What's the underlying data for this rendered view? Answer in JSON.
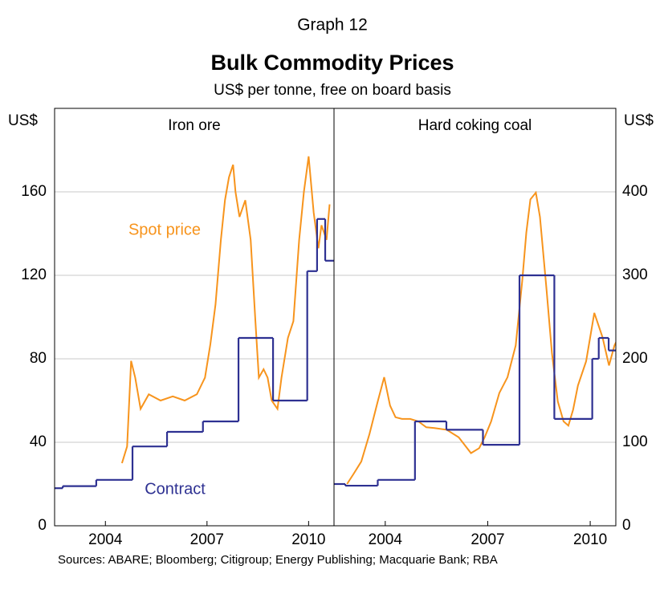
{
  "graph_label": "Graph 12",
  "title": "Bulk Commodity Prices",
  "subtitle": "US$ per tonne, free on board basis",
  "sources": "Sources: ABARE; Bloomberg; Citigroup; Energy Publishing; Macquarie Bank; RBA",
  "chart_data": [
    {
      "type": "line",
      "panel_title": "Iron ore",
      "ylabel": "US$",
      "yaxis_side": "left",
      "xlim": [
        2002.5,
        2010.75
      ],
      "xticks": [
        2004,
        2007,
        2010
      ],
      "ylim": [
        0,
        200
      ],
      "yticks": [
        0,
        40,
        80,
        120,
        160
      ],
      "grid": true,
      "series": [
        {
          "name": "Spot price",
          "color": "#f7941d",
          "step": false,
          "x": [
            2004.49,
            2004.64,
            2004.76,
            2004.88,
            2005.04,
            2005.28,
            2005.63,
            2005.99,
            2006.34,
            2006.7,
            2006.94,
            2007.1,
            2007.25,
            2007.41,
            2007.53,
            2007.65,
            2007.77,
            2007.84,
            2007.96,
            2008.13,
            2008.29,
            2008.43,
            2008.53,
            2008.67,
            2008.79,
            2008.91,
            2009.08,
            2009.2,
            2009.39,
            2009.55,
            2009.72,
            2009.86,
            2010.0,
            2010.15,
            2010.29,
            2010.38,
            2010.53,
            2010.62
          ],
          "values": [
            30,
            38,
            79,
            71,
            56,
            63,
            60,
            62,
            60,
            63,
            71,
            87,
            106,
            137,
            156,
            167,
            173,
            160,
            148,
            156,
            137,
            98,
            71,
            75,
            71,
            60,
            56,
            71,
            90,
            98,
            137,
            160,
            177,
            150,
            133,
            144,
            137,
            154
          ]
        },
        {
          "name": "Contract",
          "color": "#2e3192",
          "step": true,
          "x": [
            2002.5,
            2002.74,
            2003.73,
            2004.8,
            2005.82,
            2006.88,
            2007.93,
            2008.95,
            2009.96,
            2010.25,
            2010.49
          ],
          "values": [
            18,
            19,
            22,
            38,
            45,
            50,
            90,
            60,
            122,
            147,
            127
          ]
        }
      ]
    },
    {
      "type": "line",
      "panel_title": "Hard coking coal",
      "ylabel": "US$",
      "yaxis_side": "right",
      "xlim": [
        2002.5,
        2010.75
      ],
      "xticks": [
        2004,
        2007,
        2010
      ],
      "ylim": [
        0,
        500
      ],
      "yticks": [
        0,
        100,
        200,
        300,
        400
      ],
      "grid": true,
      "series": [
        {
          "color": "#f7941d",
          "step": false,
          "x": [
            2002.88,
            2003.07,
            2003.3,
            2003.54,
            2003.78,
            2003.97,
            2004.14,
            2004.3,
            2004.49,
            2004.73,
            2004.97,
            2005.2,
            2005.44,
            2005.8,
            2006.15,
            2006.51,
            2006.75,
            2006.91,
            2007.1,
            2007.34,
            2007.58,
            2007.82,
            2008.01,
            2008.13,
            2008.25,
            2008.41,
            2008.53,
            2008.72,
            2008.88,
            2009.05,
            2009.22,
            2009.36,
            2009.5,
            2009.64,
            2009.88,
            2010.12,
            2010.36,
            2010.55,
            2010.71,
            2010.83,
            2010.99,
            2011.15
          ],
          "values": [
            50,
            62,
            77,
            110,
            149,
            178,
            144,
            130,
            128,
            128,
            125,
            118,
            117,
            115,
            106,
            87,
            93,
            106,
            125,
            159,
            178,
            216,
            293,
            351,
            391,
            399,
            370,
            284,
            207,
            149,
            125,
            120,
            139,
            168,
            197,
            255,
            226,
            192,
            216,
            226,
            215,
            220
          ]
        },
        {
          "color": "#2e3192",
          "step": true,
          "x": [
            2002.5,
            2002.83,
            2003.78,
            2004.87,
            2005.79,
            2006.86,
            2007.93,
            2008.95,
            2010.06,
            2010.25,
            2010.54
          ],
          "values": [
            50,
            48,
            55,
            125,
            115,
            97,
            300,
            128,
            200,
            225,
            210
          ]
        }
      ]
    }
  ]
}
